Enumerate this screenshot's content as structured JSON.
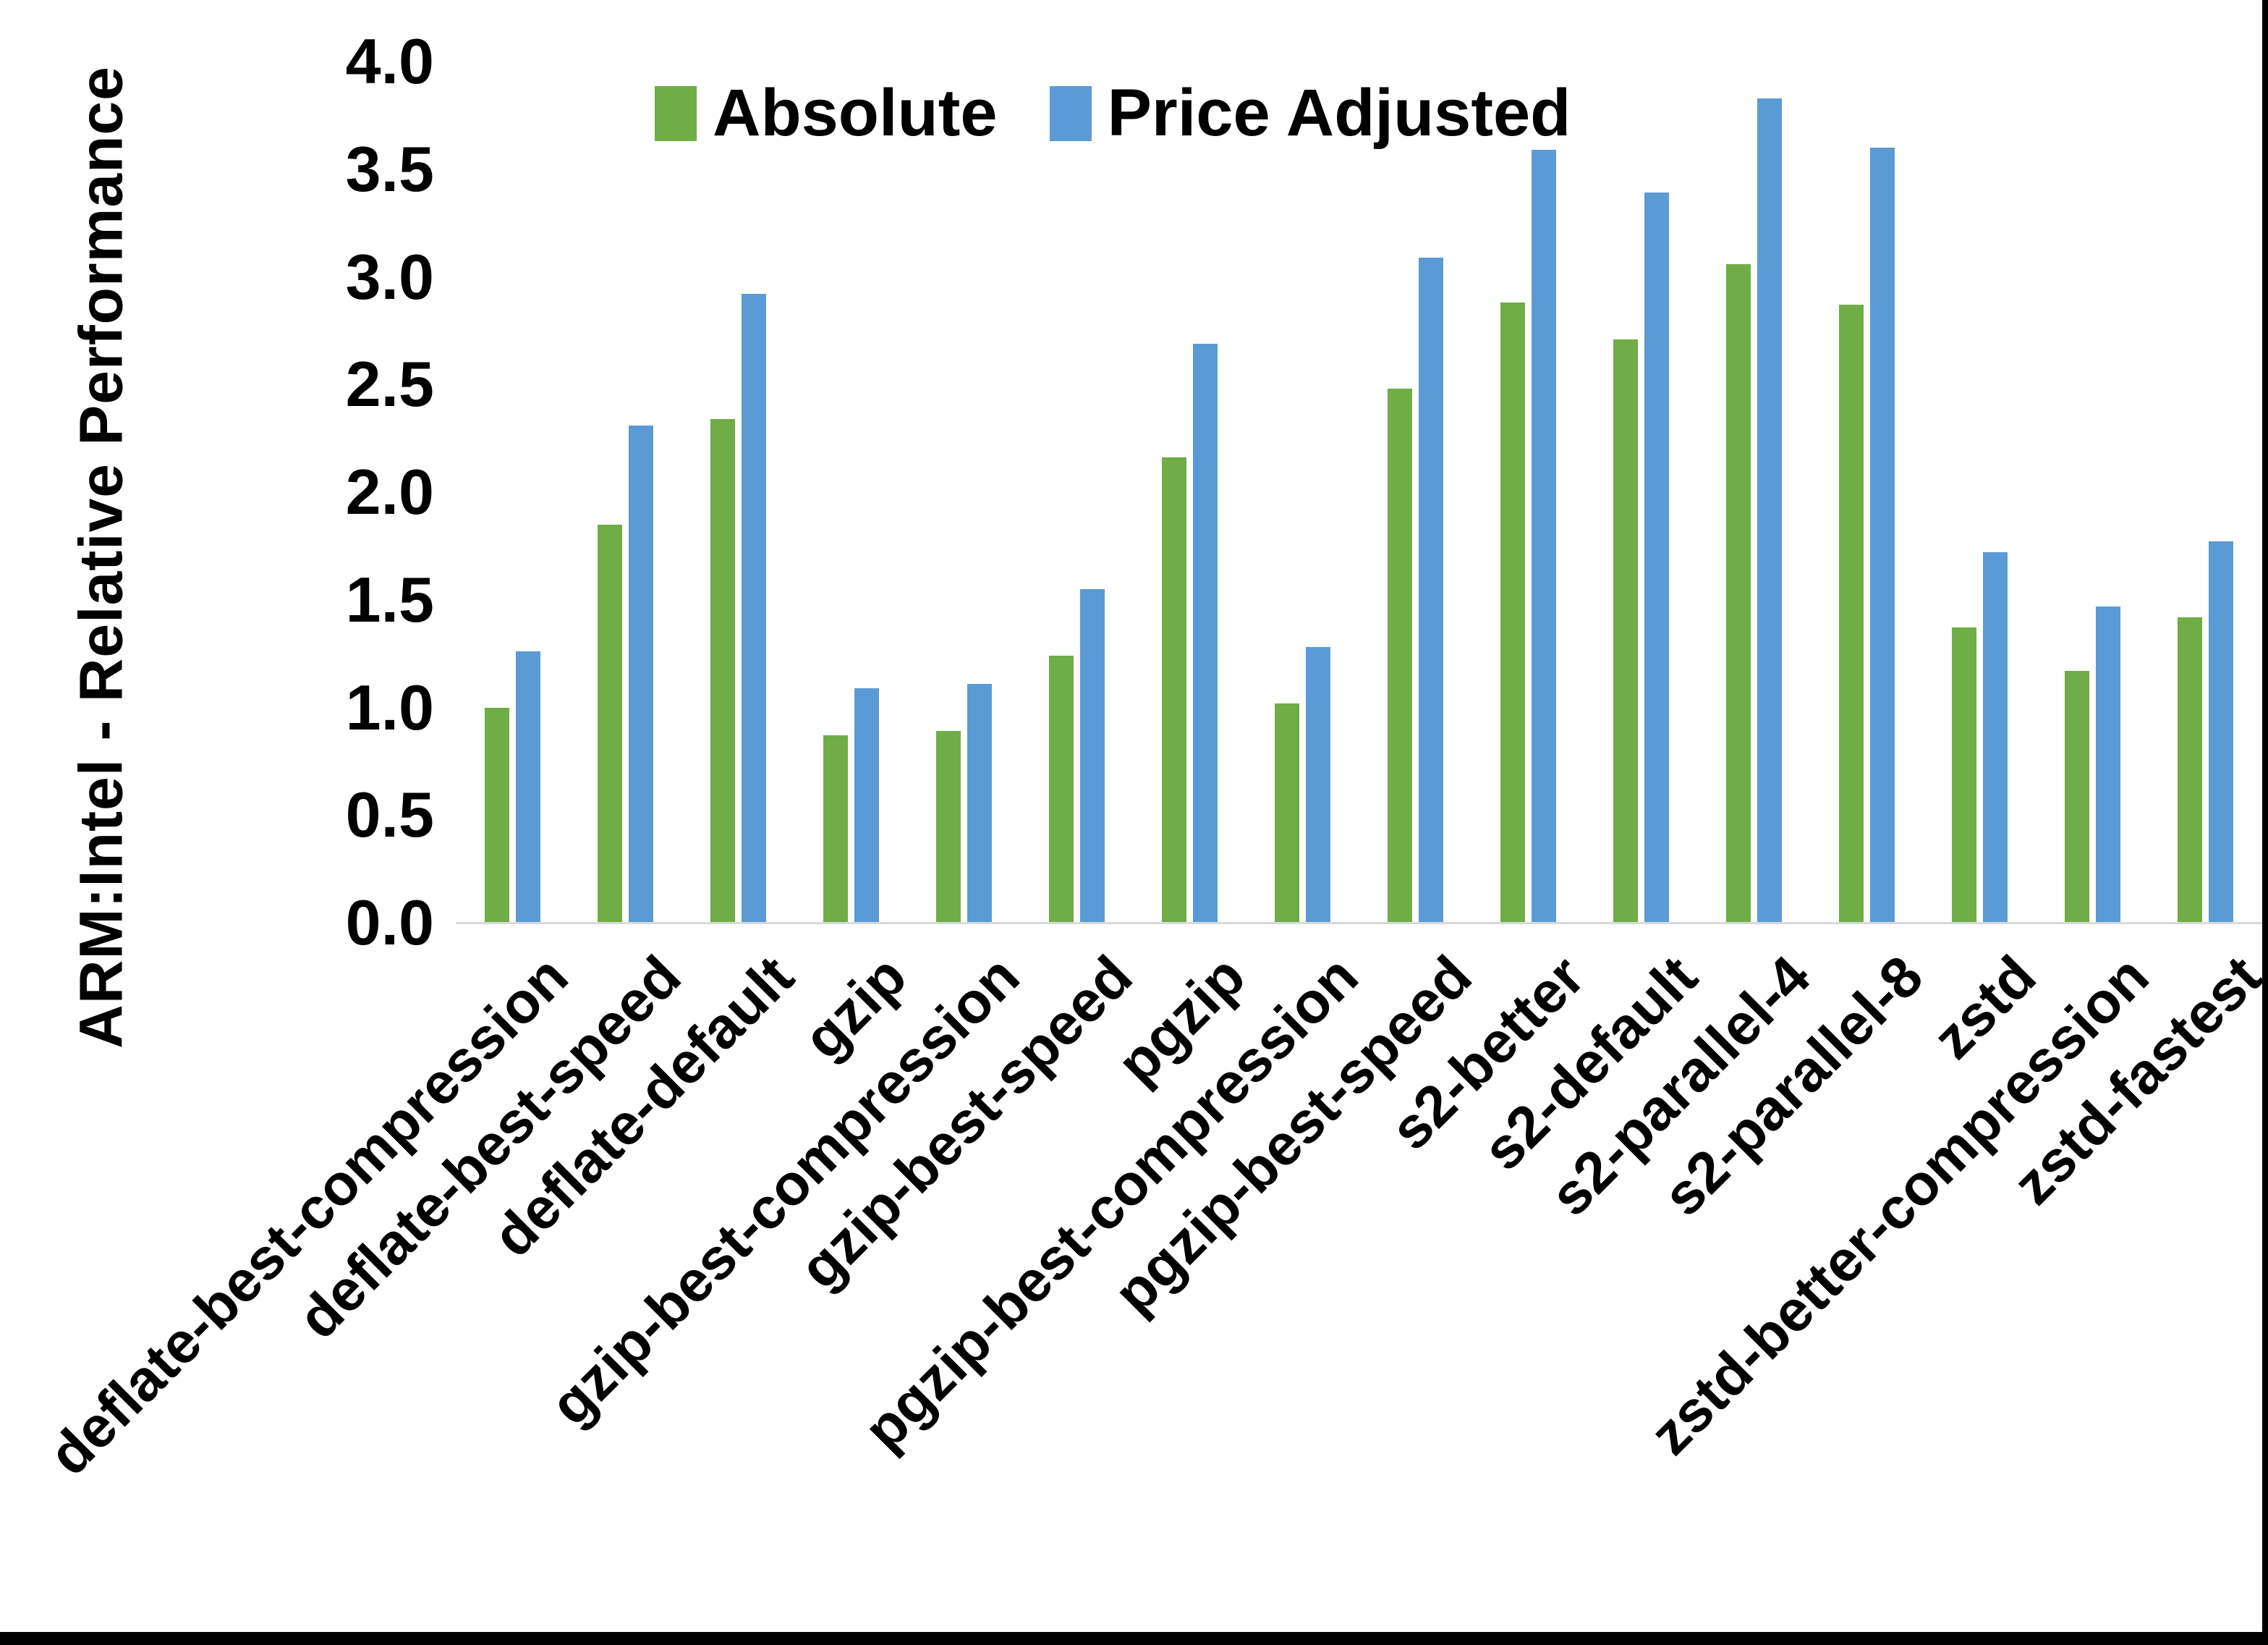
{
  "chart_data": {
    "type": "bar",
    "title": "",
    "xlabel": "",
    "ylabel": "ARM:Intel - Relative Performance",
    "ylim": [
      0,
      4
    ],
    "ytick_step": 0.5,
    "ytick_format_decimals": 1,
    "grid": false,
    "legend_position": "top-center",
    "categories": [
      "deflate-best-compression",
      "deflate-best-speed",
      "deflate-default",
      "gzip",
      "gzip-best-compression",
      "gzip-best-speed",
      "pgzip",
      "pgzip-best-compression",
      "pgzip-best-speed",
      "s2-better",
      "s2-default",
      "s2-parallel-4",
      "s2-parallel-8",
      "zstd",
      "zstd-better-compression",
      "zstd-fastest"
    ],
    "series": [
      {
        "name": "Absolute",
        "color": "#70AD47",
        "values": [
          1.0,
          1.85,
          2.34,
          0.87,
          0.89,
          1.24,
          2.16,
          1.02,
          2.48,
          2.88,
          2.71,
          3.06,
          2.87,
          1.37,
          1.17,
          1.42
        ]
      },
      {
        "name": "Price Adjusted",
        "color": "#5B9BD5",
        "values": [
          1.26,
          2.31,
          2.92,
          1.09,
          1.11,
          1.55,
          2.69,
          1.28,
          3.09,
          3.59,
          3.39,
          3.83,
          3.6,
          1.72,
          1.47,
          1.77
        ]
      }
    ]
  },
  "legend": [
    {
      "label": "Absolute",
      "color": "#70AD47"
    },
    {
      "label": "Price Adjusted",
      "color": "#5B9BD5"
    }
  ],
  "axis": {
    "baseline_color": "#d9d9d9",
    "text_color": "#000000"
  }
}
